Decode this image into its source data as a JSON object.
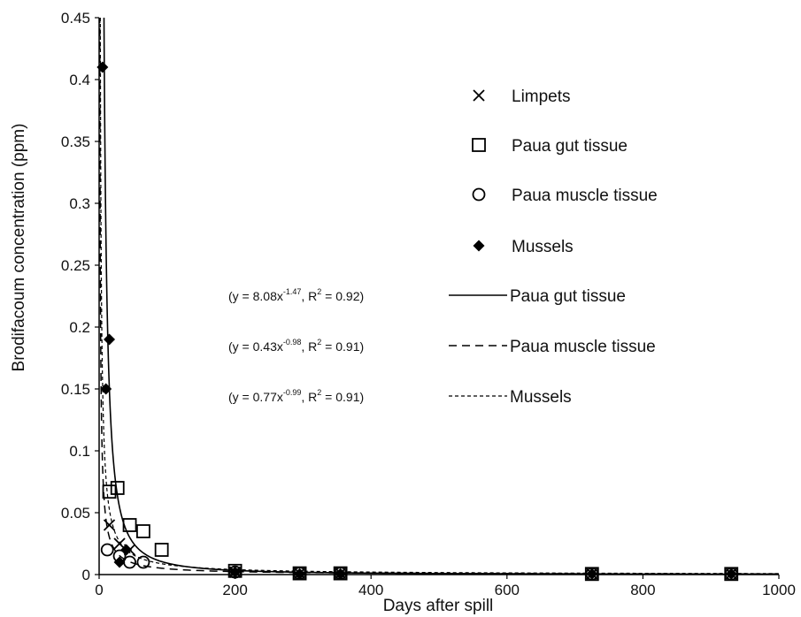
{
  "chart_data": {
    "type": "scatter",
    "xlabel": "Days after spill",
    "ylabel": "Brodifacoum concentration (ppm)",
    "xlim": [
      0,
      1000
    ],
    "ylim": [
      0,
      0.45
    ],
    "x_ticks": [
      "0",
      "200",
      "400",
      "600",
      "800",
      "1000"
    ],
    "y_ticks": [
      "0",
      "0.05",
      "0.1",
      "0.15",
      "0.2",
      "0.25",
      "0.3",
      "0.35",
      "0.4",
      "0.45"
    ],
    "grid": false,
    "legend_position": "right",
    "series": [
      {
        "name": "Limpets",
        "marker": "x",
        "points": [
          [
            15,
            0.04
          ],
          [
            30,
            0.025
          ],
          [
            45,
            0.02
          ],
          [
            200,
            0.002
          ],
          [
            295,
            0.001
          ],
          [
            355,
            0.001
          ],
          [
            725,
            0.0005
          ],
          [
            930,
            0.0005
          ]
        ]
      },
      {
        "name": "Paua gut tissue",
        "marker": "square",
        "points": [
          [
            15,
            0.067
          ],
          [
            27,
            0.07
          ],
          [
            45,
            0.04
          ],
          [
            65,
            0.035
          ],
          [
            92,
            0.02
          ],
          [
            200,
            0.003
          ],
          [
            295,
            0.001
          ],
          [
            355,
            0.001
          ],
          [
            725,
            0.0005
          ],
          [
            930,
            0.0005
          ]
        ]
      },
      {
        "name": "Paua muscle tissue",
        "marker": "circle",
        "points": [
          [
            12,
            0.02
          ],
          [
            30,
            0.015
          ],
          [
            45,
            0.01
          ],
          [
            65,
            0.01
          ],
          [
            200,
            0.002
          ],
          [
            295,
            0.001
          ],
          [
            355,
            0.001
          ],
          [
            725,
            0.0005
          ],
          [
            930,
            0.0005
          ]
        ]
      },
      {
        "name": "Mussels",
        "marker": "diamond",
        "points": [
          [
            5,
            0.41
          ],
          [
            10,
            0.15
          ],
          [
            15,
            0.19
          ],
          [
            30,
            0.01
          ],
          [
            40,
            0.02
          ],
          [
            200,
            0.002
          ],
          [
            295,
            0.0005
          ],
          [
            355,
            0.0005
          ],
          [
            725,
            0.0005
          ],
          [
            930,
            0.0005
          ]
        ]
      }
    ],
    "fits": [
      {
        "name": "Paua gut tissue",
        "style": "solid",
        "a": 8.08,
        "b": -1.47,
        "equation": "(y = 8.08x",
        "exponent": "-1.47",
        "r2_text": ", R",
        "r2_sup": "2",
        "r2_value": " = 0.92)"
      },
      {
        "name": "Paua muscle tissue",
        "style": "dashed",
        "a": 0.43,
        "b": -0.98,
        "equation": "(y = 0.43x",
        "exponent": "-0.98",
        "r2_text": ", R",
        "r2_sup": "2",
        "r2_value": " = 0.91)"
      },
      {
        "name": "Mussels",
        "style": "dotted",
        "a": 0.77,
        "b": -0.99,
        "equation": "(y = 0.77x",
        "exponent": "-0.99",
        "r2_text": ", R",
        "r2_sup": "2",
        "r2_value": " = 0.91)"
      }
    ]
  }
}
